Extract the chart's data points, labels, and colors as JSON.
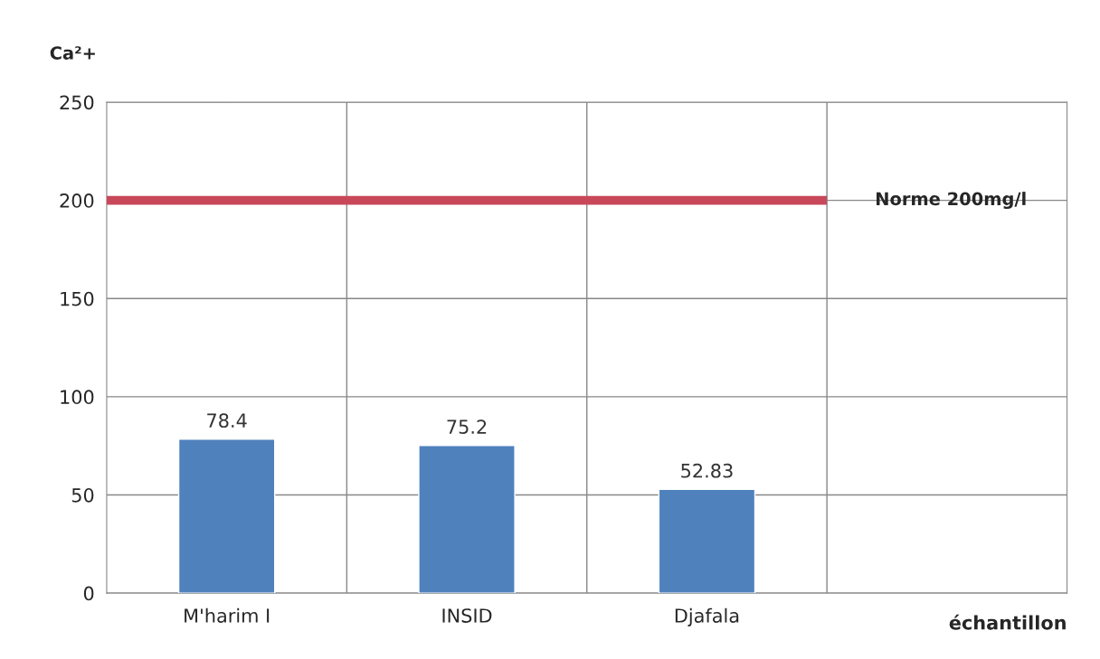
{
  "chart_data": {
    "type": "bar",
    "ylabel": "Ca²+",
    "xlabel": "échantillon",
    "categories": [
      "M'harim I",
      "INSID",
      "Djafala",
      null
    ],
    "values": [
      78.4,
      75.2,
      52.83,
      null
    ],
    "color": "#4f81bd",
    "ylim": [
      0,
      250
    ],
    "yticks": [
      0,
      50,
      100,
      150,
      200,
      250
    ],
    "grid": true,
    "data_labels": true,
    "ref_lines": [
      {
        "axis": "y",
        "value": 200,
        "label": "Norme 200mg/l",
        "color": "#c8485a"
      }
    ]
  }
}
